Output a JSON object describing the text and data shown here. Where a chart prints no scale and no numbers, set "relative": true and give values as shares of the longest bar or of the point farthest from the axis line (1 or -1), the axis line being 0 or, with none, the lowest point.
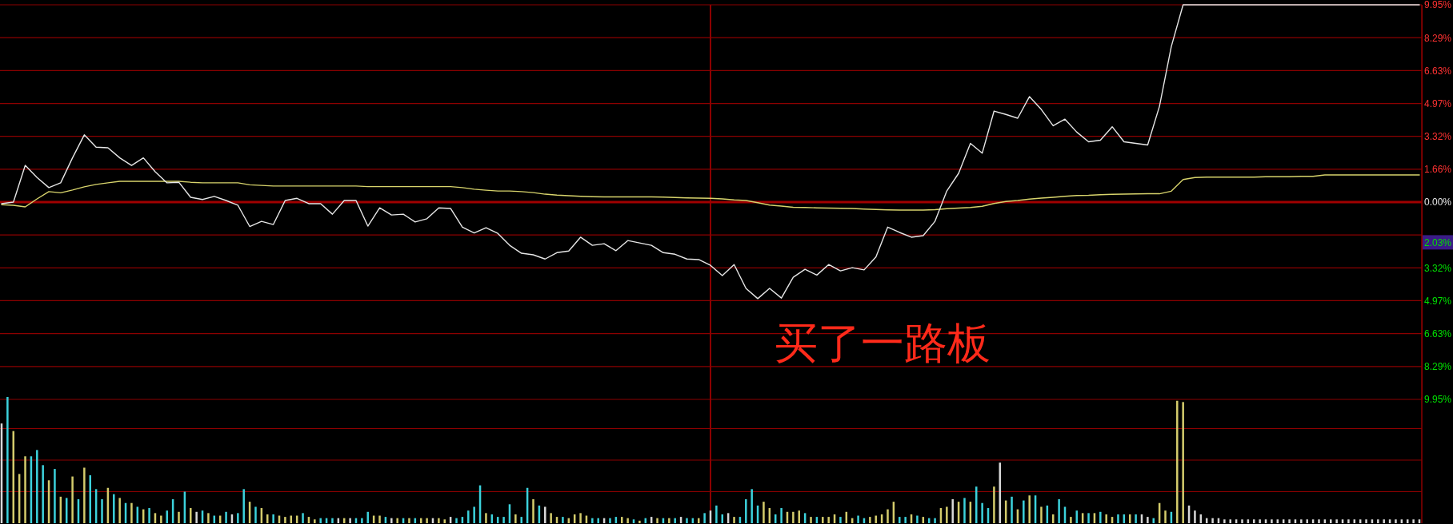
{
  "chart_data": [
    {
      "type": "line",
      "categories": [
        null,
        null,
        null,
        null,
        null,
        null,
        null,
        null,
        null,
        null,
        null,
        null,
        null,
        null,
        null,
        null,
        null,
        null,
        null,
        null,
        null,
        null,
        null,
        null,
        null,
        null,
        null,
        null,
        null,
        null,
        null,
        null,
        null,
        null,
        null,
        null,
        null,
        null,
        null,
        null,
        null,
        null,
        null,
        null,
        null,
        null,
        null,
        null,
        null,
        null,
        null,
        null,
        null,
        null,
        null,
        null,
        null,
        null,
        null,
        null,
        null,
        null,
        null,
        null,
        null,
        null,
        null,
        null,
        null,
        null,
        null,
        null,
        null,
        null,
        null,
        null,
        null,
        null,
        null,
        null,
        null,
        null,
        null,
        null,
        null,
        null,
        null,
        null,
        null,
        null,
        null,
        null,
        null,
        null,
        null,
        null,
        null,
        null,
        null,
        null,
        null,
        null,
        null,
        null,
        null,
        null,
        null,
        null,
        null,
        null,
        null,
        null,
        null,
        null,
        null,
        null,
        null,
        null,
        null,
        null,
        null
      ],
      "series": [
        {
          "color": "#e6e6e6",
          "values": [
            -0.08,
            0.0,
            1.85,
            1.24,
            0.73,
            0.97,
            2.23,
            3.39,
            2.77,
            2.74,
            2.23,
            1.85,
            2.23,
            1.53,
            0.97,
            1.0,
            0.24,
            0.13,
            0.29,
            0.08,
            -0.16,
            -1.23,
            -0.97,
            -1.13,
            0.08,
            0.19,
            -0.08,
            -0.08,
            -0.61,
            0.08,
            0.08,
            -1.21,
            -0.29,
            -0.65,
            -0.61,
            -1.0,
            -0.84,
            -0.29,
            -0.32,
            -1.26,
            -1.56,
            -1.29,
            -1.58,
            -2.18,
            -2.58,
            -2.66,
            -2.87,
            -2.55,
            -2.47,
            -1.77,
            -2.18,
            -2.1,
            -2.45,
            -1.94,
            -2.06,
            -2.18,
            -2.55,
            -2.63,
            -2.87,
            -2.9,
            -3.19,
            -3.71,
            -3.15,
            -4.35,
            -4.87,
            -4.35,
            -4.84,
            -3.79,
            -3.39,
            -3.68,
            -3.15,
            -3.47,
            -3.31,
            -3.42,
            -2.77,
            -1.26,
            -1.53,
            -1.77,
            -1.69,
            -0.97,
            0.56,
            1.45,
            2.96,
            2.47,
            4.59,
            4.42,
            4.23,
            5.32,
            4.67,
            3.85,
            4.18,
            3.53,
            3.04,
            3.12,
            3.8,
            3.04,
            2.96,
            2.88,
            4.83,
            7.84,
            9.95,
            9.95,
            9.95,
            9.95,
            9.95,
            9.95,
            9.95,
            9.95,
            9.95,
            9.95,
            9.95,
            9.95,
            9.95,
            9.95,
            9.95,
            9.95,
            9.95,
            9.95,
            9.95,
            9.95,
            9.95
          ]
        },
        {
          "color": "#d8d46c",
          "values": [
            -0.13,
            -0.16,
            -0.24,
            0.16,
            0.53,
            0.47,
            0.61,
            0.77,
            0.89,
            0.97,
            1.05,
            1.05,
            1.05,
            1.05,
            1.05,
            1.05,
            1.0,
            0.97,
            0.97,
            0.97,
            0.97,
            0.87,
            0.84,
            0.81,
            0.81,
            0.81,
            0.81,
            0.81,
            0.81,
            0.81,
            0.81,
            0.78,
            0.78,
            0.78,
            0.78,
            0.78,
            0.78,
            0.78,
            0.78,
            0.73,
            0.65,
            0.6,
            0.56,
            0.56,
            0.53,
            0.48,
            0.4,
            0.35,
            0.32,
            0.29,
            0.27,
            0.26,
            0.26,
            0.26,
            0.26,
            0.26,
            0.25,
            0.23,
            0.21,
            0.2,
            0.19,
            0.16,
            0.11,
            0.08,
            -0.03,
            -0.15,
            -0.2,
            -0.26,
            -0.27,
            -0.29,
            -0.3,
            -0.31,
            -0.32,
            -0.35,
            -0.37,
            -0.39,
            -0.4,
            -0.4,
            -0.4,
            -0.38,
            -0.33,
            -0.3,
            -0.27,
            -0.21,
            -0.07,
            0.03,
            0.08,
            0.15,
            0.2,
            0.24,
            0.29,
            0.33,
            0.34,
            0.37,
            0.39,
            0.4,
            0.41,
            0.42,
            0.42,
            0.55,
            1.14,
            1.24,
            1.26,
            1.26,
            1.26,
            1.26,
            1.26,
            1.28,
            1.28,
            1.28,
            1.3,
            1.3,
            1.37,
            1.37,
            1.37,
            1.37,
            1.37,
            1.37,
            1.37,
            1.37,
            1.37
          ]
        }
      ],
      "ylim": [
        -9.95,
        9.95
      ],
      "yticks": [
        {
          "value": 9.95,
          "label": "9.95%"
        },
        {
          "value": 8.29,
          "label": "8.29%"
        },
        {
          "value": 6.63,
          "label": "6.63%"
        },
        {
          "value": 4.97,
          "label": "4.97%"
        },
        {
          "value": 3.32,
          "label": "3.32%"
        },
        {
          "value": 1.66,
          "label": "1.66%"
        },
        {
          "value": 0,
          "label": "0.00%"
        },
        {
          "value": -1.66,
          "label": null
        },
        {
          "value": -3.32,
          "label": "3.32%"
        },
        {
          "value": -4.97,
          "label": "4.97%"
        },
        {
          "value": -6.63,
          "label": "6.63%"
        },
        {
          "value": -8.29,
          "label": "8.29%"
        },
        {
          "value": -9.95,
          "label": "9.95%"
        }
      ],
      "grid": true,
      "tick_labels": "y",
      "ref_lines": [
        {
          "axis": "y",
          "value": 0,
          "color": "#a00000"
        }
      ],
      "annotations": [
        {
          "text": "2.03%",
          "y": -2.03
        },
        "买了一路板"
      ]
    },
    {
      "type": "bar",
      "relative": true,
      "tick_labels": false,
      "ref_lines": [
        {
          "axis": "y",
          "value": 0.75
        },
        {
          "axis": "y",
          "value": 0.5
        },
        {
          "axis": "y",
          "value": 0.25
        }
      ],
      "categories": [
        null,
        null,
        null,
        null,
        null,
        null,
        null,
        null,
        null,
        null,
        null,
        null,
        null,
        null,
        null,
        null,
        null,
        null,
        null,
        null,
        null,
        null,
        null,
        null,
        null,
        null,
        null,
        null,
        null,
        null,
        null,
        null,
        null,
        null,
        null,
        null,
        null,
        null,
        null,
        null,
        null,
        null,
        null,
        null,
        null,
        null,
        null,
        null,
        null,
        null,
        null,
        null,
        null,
        null,
        null,
        null,
        null,
        null,
        null,
        null,
        null,
        null,
        null,
        null,
        null,
        null,
        null,
        null,
        null,
        null,
        null,
        null,
        null,
        null,
        null,
        null,
        null,
        null,
        null,
        null,
        null,
        null,
        null,
        null,
        null,
        null,
        null,
        null,
        null,
        null,
        null,
        null,
        null,
        null,
        null,
        null,
        null,
        null,
        null,
        null,
        null,
        null,
        null,
        null,
        null,
        null,
        null,
        null,
        null,
        null,
        null,
        null,
        null,
        null,
        null,
        null,
        null,
        null,
        null,
        null,
        null,
        null,
        null,
        null,
        null,
        null,
        null,
        null,
        null,
        null,
        null,
        null,
        null,
        null,
        null,
        null,
        null,
        null,
        null,
        null,
        null,
        null,
        null,
        null,
        null,
        null,
        null,
        null,
        null,
        null,
        null,
        null,
        null,
        null,
        null,
        null,
        null,
        null,
        null,
        null,
        null,
        null,
        null,
        null,
        null,
        null,
        null,
        null,
        null,
        null,
        null,
        null,
        null,
        null,
        null,
        null,
        null,
        null,
        null,
        null,
        null,
        null,
        null,
        null,
        null,
        null,
        null,
        null,
        null,
        null,
        null,
        null,
        null,
        null,
        null,
        null,
        null,
        null,
        null,
        null,
        null,
        null,
        null,
        null,
        null,
        null,
        null,
        null,
        null,
        null,
        null,
        null,
        null,
        null,
        null,
        null,
        null,
        null,
        null,
        null,
        null,
        null,
        null,
        null,
        null,
        null,
        null,
        null,
        null,
        null,
        null,
        null,
        null,
        null,
        null,
        null,
        null,
        null,
        null,
        null,
        null
      ],
      "values": [
        0.79,
        1,
        0.73,
        0.39,
        0.53,
        0.53,
        0.58,
        0.46,
        0.34,
        0.43,
        0.21,
        0.2,
        0.37,
        0.19,
        0.44,
        0.38,
        0.27,
        0.19,
        0.28,
        0.23,
        0.2,
        0.16,
        0.16,
        0.13,
        0.11,
        0.12,
        0.08,
        0.06,
        0.1,
        0.19,
        0.09,
        0.25,
        0.12,
        0.09,
        0.1,
        0.08,
        0.06,
        0.06,
        0.09,
        0.07,
        0.08,
        0.27,
        0.17,
        0.13,
        0.12,
        0.07,
        0.07,
        0.06,
        0.05,
        0.06,
        0.06,
        0.08,
        0.05,
        0.03,
        0.04,
        0.04,
        0.04,
        0.04,
        0.04,
        0.04,
        0.04,
        0.04,
        0.09,
        0.06,
        0.06,
        0.05,
        0.04,
        0.04,
        0.04,
        0.04,
        0.04,
        0.04,
        0.04,
        0.04,
        0.04,
        0.03,
        0.05,
        0.04,
        0.05,
        0.1,
        0.13,
        0.3,
        0.08,
        0.07,
        0.05,
        0.05,
        0.15,
        0.07,
        0.05,
        0.28,
        0.19,
        0.14,
        0.13,
        0.08,
        0.05,
        0.05,
        0.04,
        0.07,
        0.08,
        0.06,
        0.04,
        0.04,
        0.04,
        0.04,
        0.05,
        0.05,
        0.04,
        0.03,
        0.02,
        0.04,
        0.05,
        0.04,
        0.04,
        0.04,
        0.04,
        0.05,
        0.04,
        0.04,
        0.04,
        0.08,
        0.1,
        0.14,
        0.07,
        0.08,
        0.05,
        0.05,
        0.19,
        0.27,
        0.14,
        0.17,
        0.12,
        0.07,
        0.12,
        0.09,
        0.09,
        0.1,
        0.08,
        0.05,
        0.05,
        0.05,
        0.05,
        0.07,
        0.05,
        0.09,
        0.04,
        0.06,
        0.04,
        0.05,
        0.06,
        0.07,
        0.11,
        0.17,
        0.05,
        0.05,
        0.07,
        0.06,
        0.05,
        0.04,
        0.04,
        0.12,
        0.13,
        0.19,
        0.17,
        0.2,
        0.17,
        0.29,
        0.16,
        0.12,
        0.29,
        0.48,
        0.18,
        0.21,
        0.11,
        0.18,
        0.22,
        0.22,
        0.13,
        0.14,
        0.07,
        0.19,
        0.13,
        0.05,
        0.1,
        0.08,
        0.08,
        0.08,
        0.09,
        0.07,
        0.05,
        0.07,
        0.07,
        0.07,
        0.07,
        0.07,
        0.05,
        0.04,
        0.16,
        0.1,
        0.09,
        0.97,
        0.96,
        0.14,
        0.1,
        0.07,
        0.04,
        0.04,
        0.04,
        0.03,
        0.03,
        0.03,
        0.03,
        0.03,
        0.03,
        0.03,
        0.03,
        0.03,
        0.03,
        0.03,
        0.03,
        0.03,
        0.03,
        0.03,
        0.03,
        0.03,
        0.03,
        0.03,
        0.03,
        0.03,
        0.03,
        0.03,
        0.03,
        0.03,
        0.03,
        0.03,
        0.03,
        0.03,
        0.03,
        0.03,
        0.03,
        0.03,
        0.03
      ],
      "colors": [
        "#d8d8d8",
        "#3cd2dc",
        "#d4cc6c",
        "#d4cc6c",
        "#d4cc6c",
        "#3cd2dc",
        "#3cd2dc",
        "#3cd2dc",
        "#d4cc6c",
        "#3cd2dc",
        "#d4cc6c",
        "#3cd2dc",
        "#d4cc6c",
        "#3cd2dc",
        "#d4cc6c",
        "#3cd2dc",
        "#3cd2dc",
        "#3cd2dc",
        "#d4cc6c",
        "#3cd2dc",
        "#d4cc6c",
        "#3cd2dc",
        "#d4cc6c",
        "#3cd2dc",
        "#d4cc6c",
        "#3cd2dc",
        "#d4cc6c",
        "#d4cc6c",
        "#3cd2dc",
        "#3cd2dc",
        "#d4cc6c",
        "#3cd2dc",
        "#d4cc6c",
        "#d8d8d8",
        "#3cd2dc",
        "#d4cc6c",
        "#3cd2dc",
        "#d4cc6c",
        "#3cd2dc",
        "#d8d8d8",
        "#3cd2dc",
        "#3cd2dc",
        "#d4cc6c",
        "#3cd2dc",
        "#d4cc6c",
        "#d4cc6c",
        "#3cd2dc",
        "#d4cc6c",
        "#d4cc6c",
        "#d4cc6c",
        "#d4cc6c",
        "#3cd2dc",
        "#d4cc6c",
        "#d4cc6c",
        "#3cd2dc",
        "#3cd2dc",
        "#3cd2dc",
        "#d8d8d8",
        "#d4cc6c",
        "#d8d8d8",
        "#3cd2dc",
        "#3cd2dc",
        "#3cd2dc",
        "#d4cc6c",
        "#d4cc6c",
        "#3cd2dc",
        "#d8d8d8",
        "#d4cc6c",
        "#3cd2dc",
        "#d4cc6c",
        "#3cd2dc",
        "#d4cc6c",
        "#d4cc6c",
        "#d8d8d8",
        "#d4cc6c",
        "#d4cc6c",
        "#d8d8d8",
        "#3cd2dc",
        "#3cd2dc",
        "#3cd2dc",
        "#3cd2dc",
        "#3cd2dc",
        "#d4cc6c",
        "#3cd2dc",
        "#3cd2dc",
        "#3cd2dc",
        "#3cd2dc",
        "#d4cc6c",
        "#3cd2dc",
        "#3cd2dc",
        "#d4cc6c",
        "#3cd2dc",
        "#d8d8d8",
        "#d4cc6c",
        "#d4cc6c",
        "#3cd2dc",
        "#d4cc6c",
        "#d4cc6c",
        "#d4cc6c",
        "#d4cc6c",
        "#3cd2dc",
        "#3cd2dc",
        "#d8d8d8",
        "#3cd2dc",
        "#3cd2dc",
        "#d4cc6c",
        "#d4cc6c",
        "#3cd2dc",
        "#d4cc6c",
        "#3cd2dc",
        "#d8d8d8",
        "#d4cc6c",
        "#3cd2dc",
        "#d4cc6c",
        "#3cd2dc",
        "#d8d8d8",
        "#3cd2dc",
        "#3cd2dc",
        "#d4cc6c",
        "#3cd2dc",
        "#d8d8d8",
        "#3cd2dc",
        "#3cd2dc",
        "#d8d8d8",
        "#d4cc6c",
        "#3cd2dc",
        "#3cd2dc",
        "#3cd2dc",
        "#3cd2dc",
        "#d4cc6c",
        "#d4cc6c",
        "#3cd2dc",
        "#3cd2dc",
        "#d4cc6c",
        "#d4cc6c",
        "#d4cc6c",
        "#3cd2dc",
        "#d4cc6c",
        "#3cd2dc",
        "#d4cc6c",
        "#d4cc6c",
        "#d4cc6c",
        "#3cd2dc",
        "#d4cc6c",
        "#d4cc6c",
        "#3cd2dc",
        "#3cd2dc",
        "#d4cc6c",
        "#d4cc6c",
        "#d4cc6c",
        "#d4cc6c",
        "#d4cc6c",
        "#3cd2dc",
        "#3cd2dc",
        "#d4cc6c",
        "#3cd2dc",
        "#d4cc6c",
        "#3cd2dc",
        "#3cd2dc",
        "#d4cc6c",
        "#d4cc6c",
        "#d8d8d8",
        "#d4cc6c",
        "#3cd2dc",
        "#d4cc6c",
        "#3cd2dc",
        "#3cd2dc",
        "#3cd2dc",
        "#d4cc6c",
        "#d8d8d8",
        "#d4cc6c",
        "#3cd2dc",
        "#d4cc6c",
        "#3cd2dc",
        "#d4cc6c",
        "#3cd2dc",
        "#d4cc6c",
        "#3cd2dc",
        "#d4cc6c",
        "#3cd2dc",
        "#3cd2dc",
        "#d4cc6c",
        "#3cd2dc",
        "#d4cc6c",
        "#3cd2dc",
        "#d4cc6c",
        "#3cd2dc",
        "#d4cc6c",
        "#d4cc6c",
        "#3cd2dc",
        "#3cd2dc",
        "#d4cc6c",
        "#3cd2dc",
        "#d8d8d8",
        "#d8d8d8",
        "#3cd2dc",
        "#d4cc6c",
        "#d4cc6c",
        "#3cd2dc",
        "#d4cc6c",
        "#d4cc6c",
        "#d8d8d8",
        "#d8d8d8",
        "#d8d8d8",
        "#d8d8d8",
        "#d8d8d8",
        "#d8d8d8",
        "#d8d8d8",
        "#d8d8d8",
        "#d8d8d8",
        "#d8d8d8",
        "#d8d8d8",
        "#d8d8d8",
        "#d8d8d8",
        "#d8d8d8",
        "#d8d8d8",
        "#d8d8d8",
        "#d8d8d8",
        "#d8d8d8",
        "#d8d8d8",
        "#d8d8d8",
        "#d8d8d8",
        "#d8d8d8",
        "#d8d8d8",
        "#d8d8d8",
        "#d8d8d8",
        "#d8d8d8",
        "#d8d8d8",
        "#d8d8d8",
        "#d8d8d8",
        "#d8d8d8",
        "#d8d8d8",
        "#d8d8d8",
        "#d8d8d8",
        "#d8d8d8",
        "#d8d8d8",
        "#d8d8d8",
        "#d8d8d8",
        "#d8d8d8",
        "#d8d8d8",
        "#d8d8d8"
      ]
    }
  ]
}
